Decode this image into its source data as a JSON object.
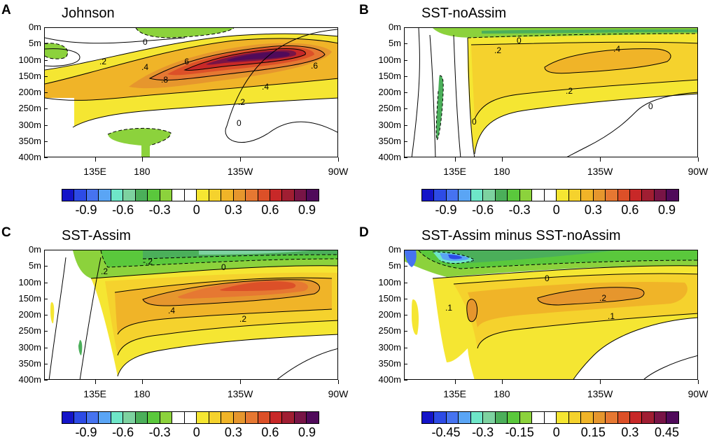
{
  "colors": [
    "#1414c8",
    "#2d4be6",
    "#4673f0",
    "#5aa5f5",
    "#6ee6c8",
    "#7dd2a0",
    "#4baf5a",
    "#5ac83c",
    "#8cd23c",
    "#ffffff",
    "#ffffff",
    "#f5e632",
    "#f5d22d",
    "#f0b428",
    "#e6962d",
    "#e67832",
    "#dc5028",
    "#c82828",
    "#a01e32",
    "#781446",
    "#500a5a"
  ],
  "panels": [
    {
      "label": "A",
      "title": "Johnson",
      "colorbar_labels": [
        "-0.9",
        "-0.6",
        "-0.3",
        "0",
        "0.3",
        "0.6",
        "0.9"
      ],
      "contour_labels": [
        "0",
        ".2",
        ".4",
        ".6",
        ".8",
        ".4",
        ".6",
        ".2",
        "0"
      ]
    },
    {
      "label": "B",
      "title": "SST-noAssim",
      "colorbar_labels": [
        "-0.9",
        "-0.6",
        "-0.3",
        "0",
        "0.3",
        "0.6",
        "0.9"
      ],
      "contour_labels": [
        ".2",
        ".4",
        ".2",
        "0",
        "0",
        "0"
      ]
    },
    {
      "label": "C",
      "title": "SST-Assim",
      "colorbar_labels": [
        "-0.9",
        "-0.6",
        "-0.3",
        "0",
        "0.3",
        "0.6",
        "0.9"
      ],
      "contour_labels": [
        ".2",
        "0",
        "-.2",
        ".4",
        ".2"
      ]
    },
    {
      "label": "D",
      "title": "SST-Assim minus SST-noAssim",
      "colorbar_labels": [
        "-0.45",
        "-0.3",
        "-0.15",
        "0",
        "0.15",
        "0.3",
        "0.45"
      ],
      "contour_labels": [
        "0",
        ".2",
        ".1",
        ".1"
      ]
    }
  ],
  "y_ticks": [
    "0m",
    "5m",
    "100m",
    "150m",
    "200m",
    "250m",
    "300m",
    "350m",
    "400m"
  ],
  "x_ticks": [
    "135E",
    "180",
    "135W",
    "90W"
  ],
  "chart_data": [
    {
      "type": "heatmap",
      "title": "Johnson",
      "panel": "A",
      "x_ticks": [
        "135E",
        "180",
        "135W",
        "90W"
      ],
      "y_ticks": [
        "0m",
        "5m",
        "100m",
        "150m",
        "200m",
        "250m",
        "300m",
        "350m",
        "400m"
      ],
      "value_range": [
        -1.0,
        1.0
      ],
      "max_value": 1.0,
      "core_location": "135W, 100m"
    },
    {
      "type": "heatmap",
      "title": "SST-noAssim",
      "panel": "B",
      "x_ticks": [
        "135E",
        "180",
        "135W",
        "90W"
      ],
      "y_ticks": [
        "0m",
        "5m",
        "100m",
        "150m",
        "200m",
        "250m",
        "300m",
        "350m",
        "400m"
      ],
      "value_range": [
        -1.0,
        1.0
      ],
      "max_value": 0.5,
      "core_location": "135W, 100m"
    },
    {
      "type": "heatmap",
      "title": "SST-Assim",
      "panel": "C",
      "x_ticks": [
        "135E",
        "180",
        "135W",
        "90W"
      ],
      "y_ticks": [
        "0m",
        "5m",
        "100m",
        "150m",
        "200m",
        "250m",
        "300m",
        "350m",
        "400m"
      ],
      "value_range": [
        -1.0,
        1.0
      ],
      "max_value": 0.6,
      "core_location": "135W, 100m"
    },
    {
      "type": "heatmap",
      "title": "SST-Assim minus SST-noAssim",
      "panel": "D",
      "x_ticks": [
        "135E",
        "180",
        "135W",
        "90W"
      ],
      "y_ticks": [
        "0m",
        "5m",
        "100m",
        "150m",
        "200m",
        "250m",
        "300m",
        "350m",
        "400m"
      ],
      "value_range": [
        -0.5,
        0.5
      ],
      "max_value": 0.25,
      "core_location": "150W, 150m"
    }
  ]
}
